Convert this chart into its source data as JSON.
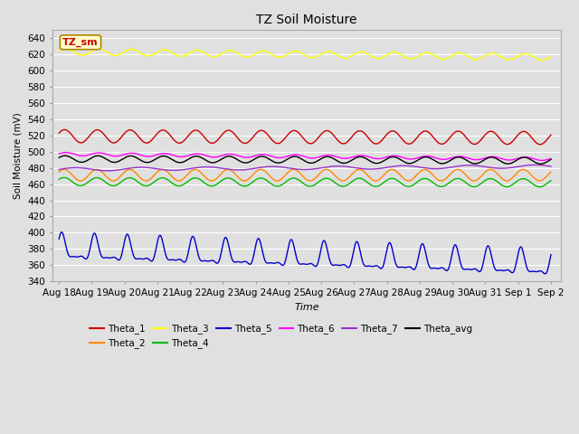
{
  "title": "TZ Soil Moisture",
  "ylabel": "Soil Moisture (mV)",
  "xlabel": "Time",
  "ylim": [
    340,
    650
  ],
  "yticks": [
    340,
    360,
    380,
    400,
    420,
    440,
    460,
    480,
    500,
    520,
    540,
    560,
    580,
    600,
    620,
    640
  ],
  "xtick_labels": [
    "Aug 18",
    "Aug 19",
    "Aug 20",
    "Aug 21",
    "Aug 22",
    "Aug 23",
    "Aug 24",
    "Aug 25",
    "Aug 26",
    "Aug 27",
    "Aug 28",
    "Aug 29",
    "Aug 30",
    "Aug 31",
    "Sep 1",
    "Sep 2"
  ],
  "background_color": "#e0e0e0",
  "plot_bg_color": "#e0e0e0",
  "grid_color": "#ffffff",
  "label_box_color": "#ffffcc",
  "label_box_border": "#aa8800",
  "label_text": "TZ_sm",
  "series": {
    "Theta_1": {
      "color": "#cc0000",
      "base": 519,
      "amp": 8,
      "period": 1.0,
      "phase": 0.5,
      "trend": -0.15
    },
    "Theta_2": {
      "color": "#ff8800",
      "base": 471,
      "amp": 7,
      "period": 1.0,
      "phase": 0.6,
      "trend": 0.0
    },
    "Theta_3": {
      "color": "#ffff00",
      "base": 623,
      "amp": 4,
      "period": 1.0,
      "phase": 0.2,
      "trend": -0.45
    },
    "Theta_4": {
      "color": "#00bb00",
      "base": 463,
      "amp": 5,
      "period": 1.0,
      "phase": 0.6,
      "trend": -0.1
    },
    "Theta_5": {
      "color": "#0000cc",
      "base": 378,
      "amp": 15,
      "period": 1.0,
      "phase": 0.0,
      "trend": 0.0
    },
    "Theta_6": {
      "color": "#ff00ff",
      "base": 497,
      "amp": 2,
      "period": 1.0,
      "phase": 0.2,
      "trend": -0.4
    },
    "Theta_7": {
      "color": "#9933cc",
      "base": 478,
      "amp": 2,
      "period": 2.0,
      "phase": 0.0,
      "trend": 0.25
    },
    "Theta_avg": {
      "color": "#000000",
      "base": 491,
      "amp": 4,
      "period": 1.0,
      "phase": 0.4,
      "trend": -0.15
    }
  },
  "legend_order": [
    "Theta_1",
    "Theta_2",
    "Theta_3",
    "Theta_4",
    "Theta_5",
    "Theta_6",
    "Theta_7",
    "Theta_avg"
  ]
}
